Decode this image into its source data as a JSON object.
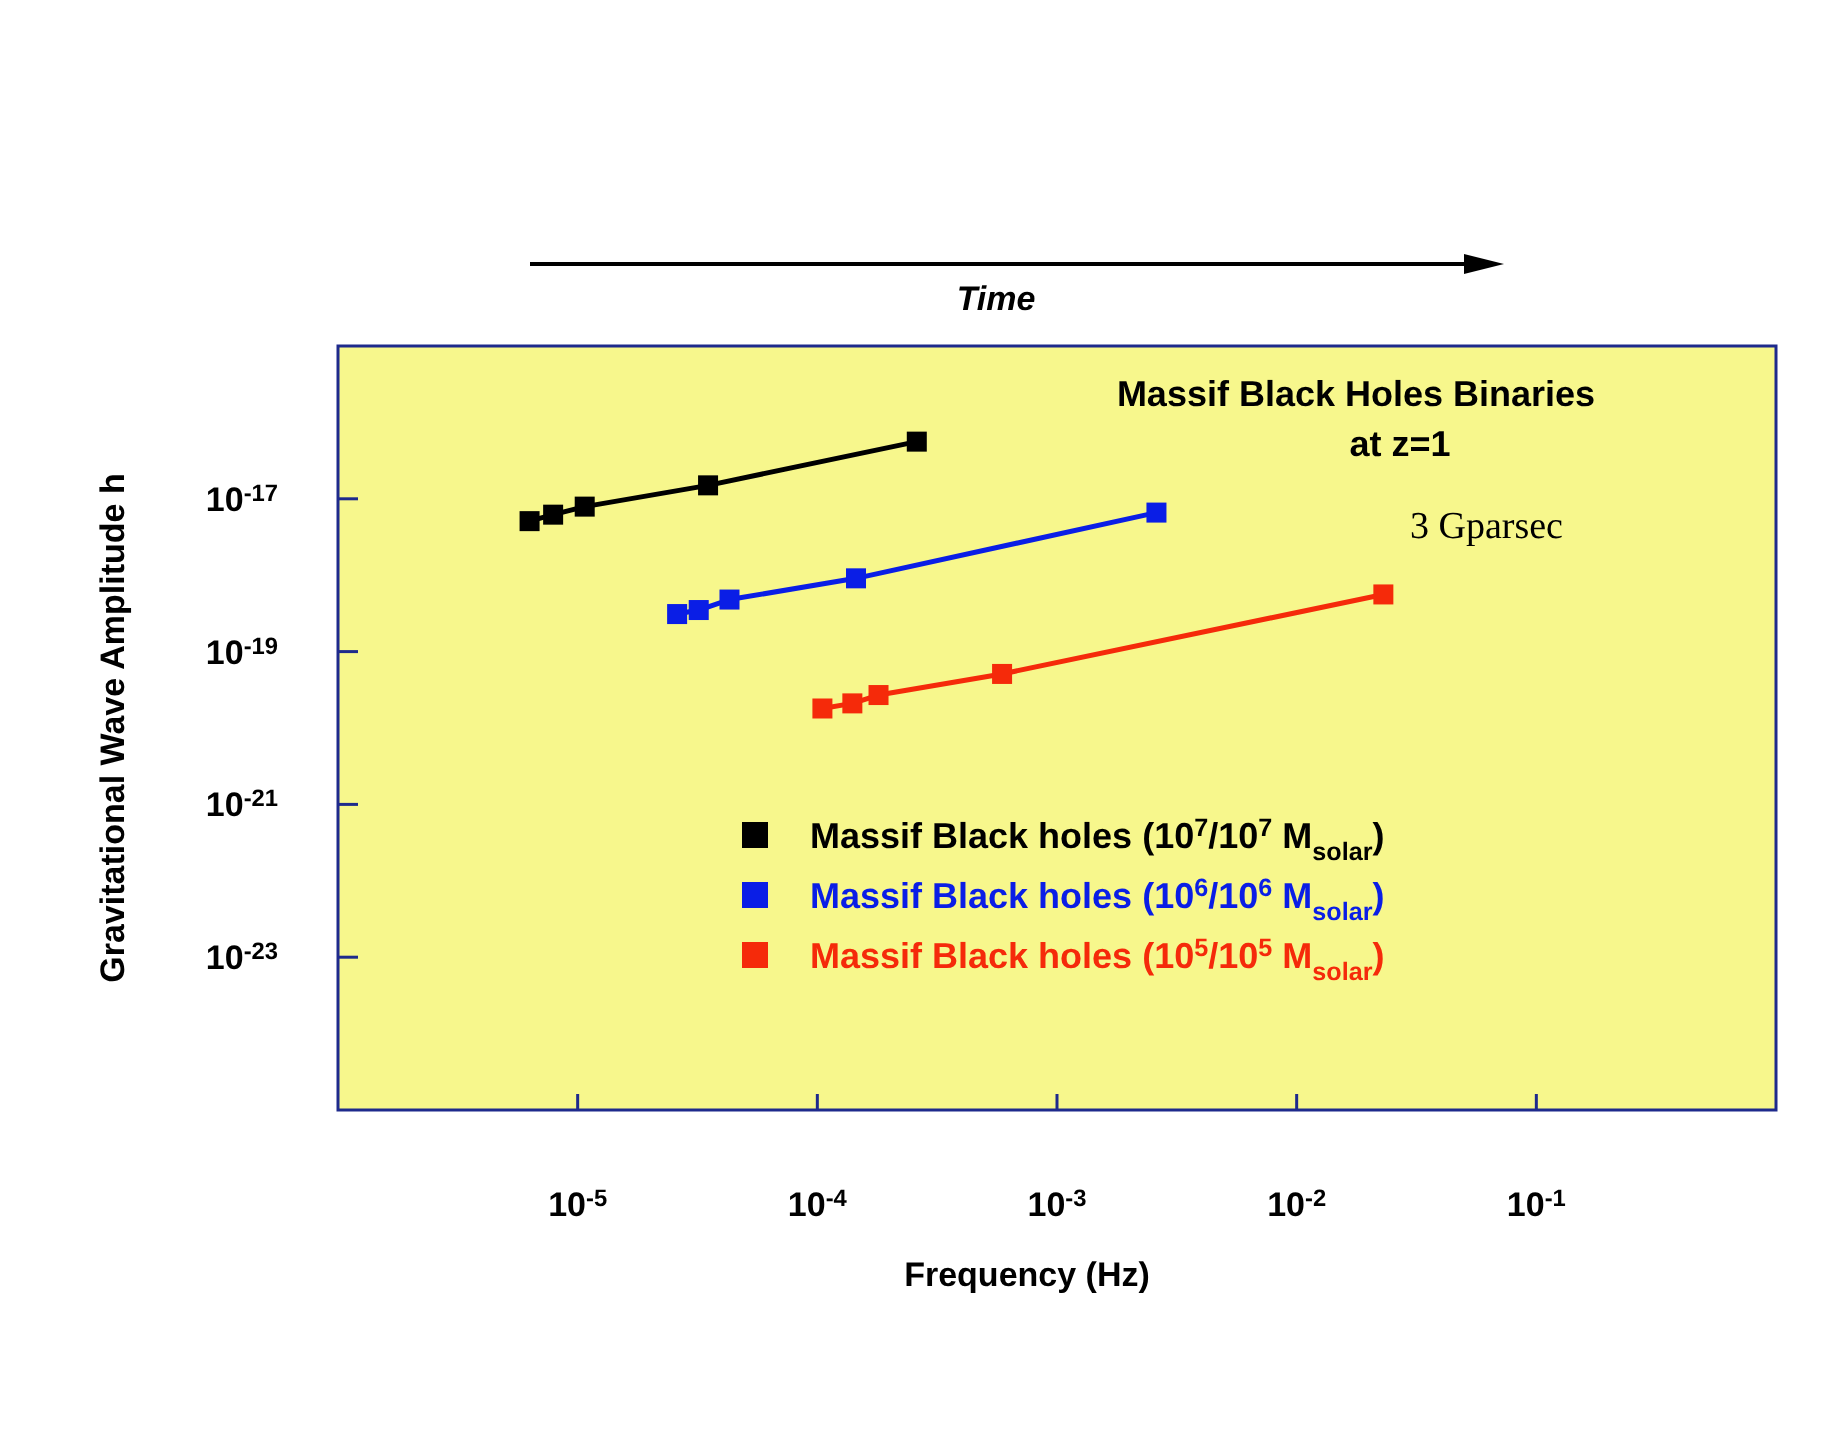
{
  "chart_data": {
    "type": "line",
    "title": "Massif Black Holes Binaries\nat z=1",
    "xlabel": "Frequency (Hz)",
    "ylabel": "Gravitational Wave Amplitude h",
    "annotations": [
      "Time",
      "3 Gparsec"
    ],
    "log": "xy",
    "grid": false,
    "legend": "bottom right",
    "marker": "square",
    "line_style": "solid",
    "xlim": [
      1e-06,
      1
    ],
    "ylim": [
      1e-25,
      1e-15
    ],
    "xticks": [
      {
        "value": 1e-05,
        "label": "10$^{-5}$"
      },
      {
        "value": 0.0001,
        "label": "10$^{-4}$"
      },
      {
        "value": 0.001,
        "label": "10$^{-3}$"
      },
      {
        "value": 0.01,
        "label": "10$^{-2}$"
      },
      {
        "value": 0.1,
        "label": "10$^{-1}$"
      }
    ],
    "yticks": [
      {
        "value": 1e-17,
        "label": "10$^{-17}$"
      },
      {
        "value": 1e-19,
        "label": "10$^{-19}$"
      },
      {
        "value": 1e-21,
        "label": "10$^{-21}$"
      },
      {
        "value": 1e-23,
        "label": "10$^{-23}$"
      }
    ],
    "series": [
      {
        "name": "Massif Black holes (10$^{7}$/10$^{7}$ M$_{solar}$)",
        "color": "#000000",
        "x": [
          6.3e-06,
          7.9e-06,
          1.07e-05,
          3.5e-05,
          0.00026
        ],
        "values": [
          5.1e-18,
          6.2e-18,
          7.9e-18,
          1.5e-17,
          5.6e-17
        ]
      },
      {
        "name": "Massif Black holes (10$^{6}$/10$^{6}$ M$_{solar}$)",
        "color": "#0a1ee6",
        "x": [
          2.6e-05,
          3.2e-05,
          4.3e-05,
          0.000145,
          0.0026
        ],
        "values": [
          3.1e-19,
          3.5e-19,
          4.8e-19,
          9.1e-19,
          6.6e-18
        ]
      },
      {
        "name": "Massif Black holes (10$^{5}$/10$^{5}$ M$_{solar}$)",
        "color": "#f52a0a",
        "x": [
          0.000105,
          0.00014,
          0.00018,
          0.00059,
          0.023
        ],
        "values": [
          1.8e-20,
          2.1e-20,
          2.7e-20,
          5.1e-20,
          5.6e-19
        ]
      }
    ]
  }
}
